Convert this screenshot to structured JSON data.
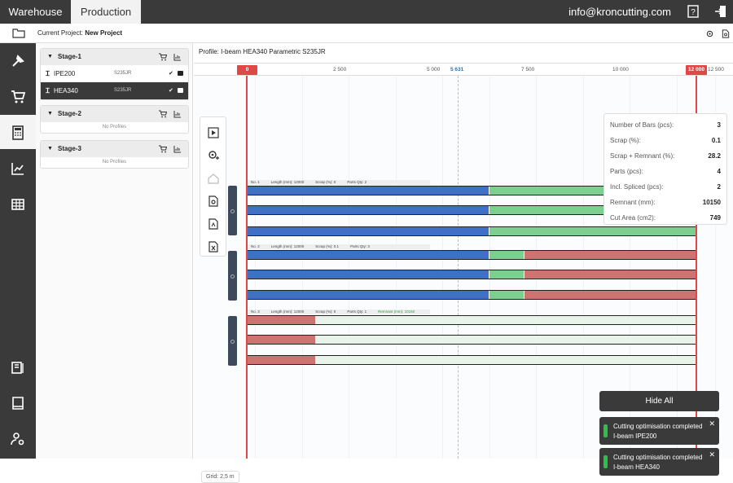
{
  "topbar": {
    "tabs": [
      "Warehouse",
      "Production"
    ],
    "email": "info@kroncutting.com"
  },
  "project": {
    "label": "Current Project:",
    "name": "New Project"
  },
  "stages": [
    {
      "name": "Stage-1",
      "profiles": [
        {
          "name": "IPE200",
          "grade": "S235JR",
          "selected": false
        },
        {
          "name": "HEA340",
          "grade": "S235JR",
          "selected": true
        }
      ]
    },
    {
      "name": "Stage-2",
      "empty_text": "No Profiles"
    },
    {
      "name": "Stage-3",
      "empty_text": "No Profiles"
    }
  ],
  "main": {
    "profile_title": "Profile: I-beam HEA340 Parametric S235JR",
    "ruler": {
      "start_tag": "0",
      "end_tag": "12 000",
      "ticks": [
        "2 500",
        "5 000",
        "5 631",
        "7 500",
        "10 000",
        "12 500"
      ]
    },
    "grid_label": "Grid: 2,5 m"
  },
  "groups": [
    {
      "no": "No. 1",
      "length": "Length (mm): 12000",
      "scrap": "Scrap (%): 0",
      "parts": "Parts Qty: 2",
      "remnant": ""
    },
    {
      "no": "No. 2",
      "length": "Length (mm): 12000",
      "scrap": "Scrap (%): 0.1",
      "parts": "Parts Qty: 3",
      "remnant": ""
    },
    {
      "no": "No. 3",
      "length": "Length (mm): 12000",
      "scrap": "Scrap (%): 0",
      "parts": "Parts Qty: 1",
      "remnant": "Remnant (mm): 10150"
    }
  ],
  "stats": [
    {
      "label": "Number of Bars (pcs):",
      "value": "3"
    },
    {
      "label": "Scrap (%):",
      "value": "0.1"
    },
    {
      "label": "Scrap + Remnant (%):",
      "value": "28.2"
    },
    {
      "label": "Parts (pcs):",
      "value": "4"
    },
    {
      "label": "Incl. Spliced (pcs):",
      "value": "2"
    },
    {
      "label": "Remnant (mm):",
      "value": "10150"
    },
    {
      "label": "Cut Area (cm2):",
      "value": "749"
    }
  ],
  "notifications": {
    "hide_all": "Hide All",
    "toasts": [
      {
        "line1": "Cutting optimisation completed",
        "line2": "I-beam IPE200"
      },
      {
        "line1": "Cutting optimisation completed",
        "line2": "I-beam HEA340"
      }
    ],
    "close_glyph": "✕"
  },
  "colors": {
    "blue": "#3f6fc6",
    "green": "#7dcf8f",
    "red": "#cf7372",
    "remnant": "#e8f3ea",
    "accent_red": "#e04848"
  }
}
